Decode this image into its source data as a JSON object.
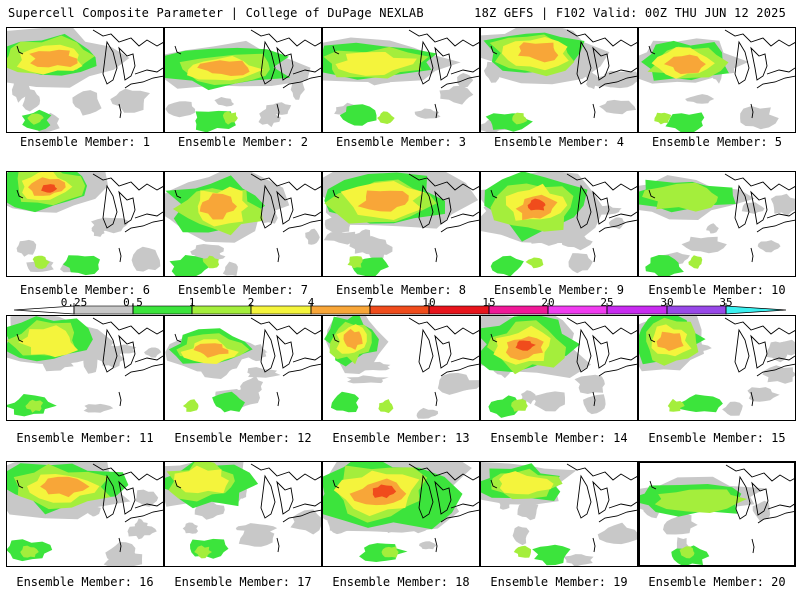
{
  "header": {
    "left_title": "Supercell Composite Parameter | College of DuPage NEXLAB",
    "right_title": "18Z GEFS | F102 Valid: 00Z THU JUN 12 2025"
  },
  "panel_label_prefix": "Ensemble Member:",
  "members": [
    {
      "label": "Ensemble Member: 1"
    },
    {
      "label": "Ensemble Member: 2"
    },
    {
      "label": "Ensemble Member: 3"
    },
    {
      "label": "Ensemble Member: 4"
    },
    {
      "label": "Ensemble Member: 5"
    },
    {
      "label": "Ensemble Member: 6"
    },
    {
      "label": "Ensemble Member: 7"
    },
    {
      "label": "Ensemble Member: 8"
    },
    {
      "label": "Ensemble Member: 9"
    },
    {
      "label": "Ensemble Member: 10"
    },
    {
      "label": "Ensemble Member: 11"
    },
    {
      "label": "Ensemble Member: 12"
    },
    {
      "label": "Ensemble Member: 13"
    },
    {
      "label": "Ensemble Member: 14"
    },
    {
      "label": "Ensemble Member: 15"
    },
    {
      "label": "Ensemble Member: 16"
    },
    {
      "label": "Ensemble Member: 17"
    },
    {
      "label": "Ensemble Member: 18"
    },
    {
      "label": "Ensemble Member: 19"
    },
    {
      "label": "Ensemble Member: 20"
    }
  ],
  "colorbar": {
    "labels": [
      "0.25",
      "0.5",
      "1",
      "2",
      "4",
      "7",
      "10",
      "15",
      "20",
      "25",
      "30",
      "35"
    ],
    "colors": [
      "#c8c8c8",
      "#3ce43c",
      "#a4ee3c",
      "#f4f43c",
      "#f8a638",
      "#f04c1c",
      "#e8141c",
      "#f01898",
      "#f03cf0",
      "#c82cf0",
      "#9848e8",
      "#b070e0",
      "#3cf0f0"
    ]
  },
  "shading_colors": {
    "gray": "#c8c8c8",
    "green": "#3ce43c",
    "lightgreen": "#a4ee3c",
    "yellow": "#f4f43c",
    "orange": "#f8a638",
    "red": "#f04c1c",
    "darkred": "#e8141c"
  }
}
